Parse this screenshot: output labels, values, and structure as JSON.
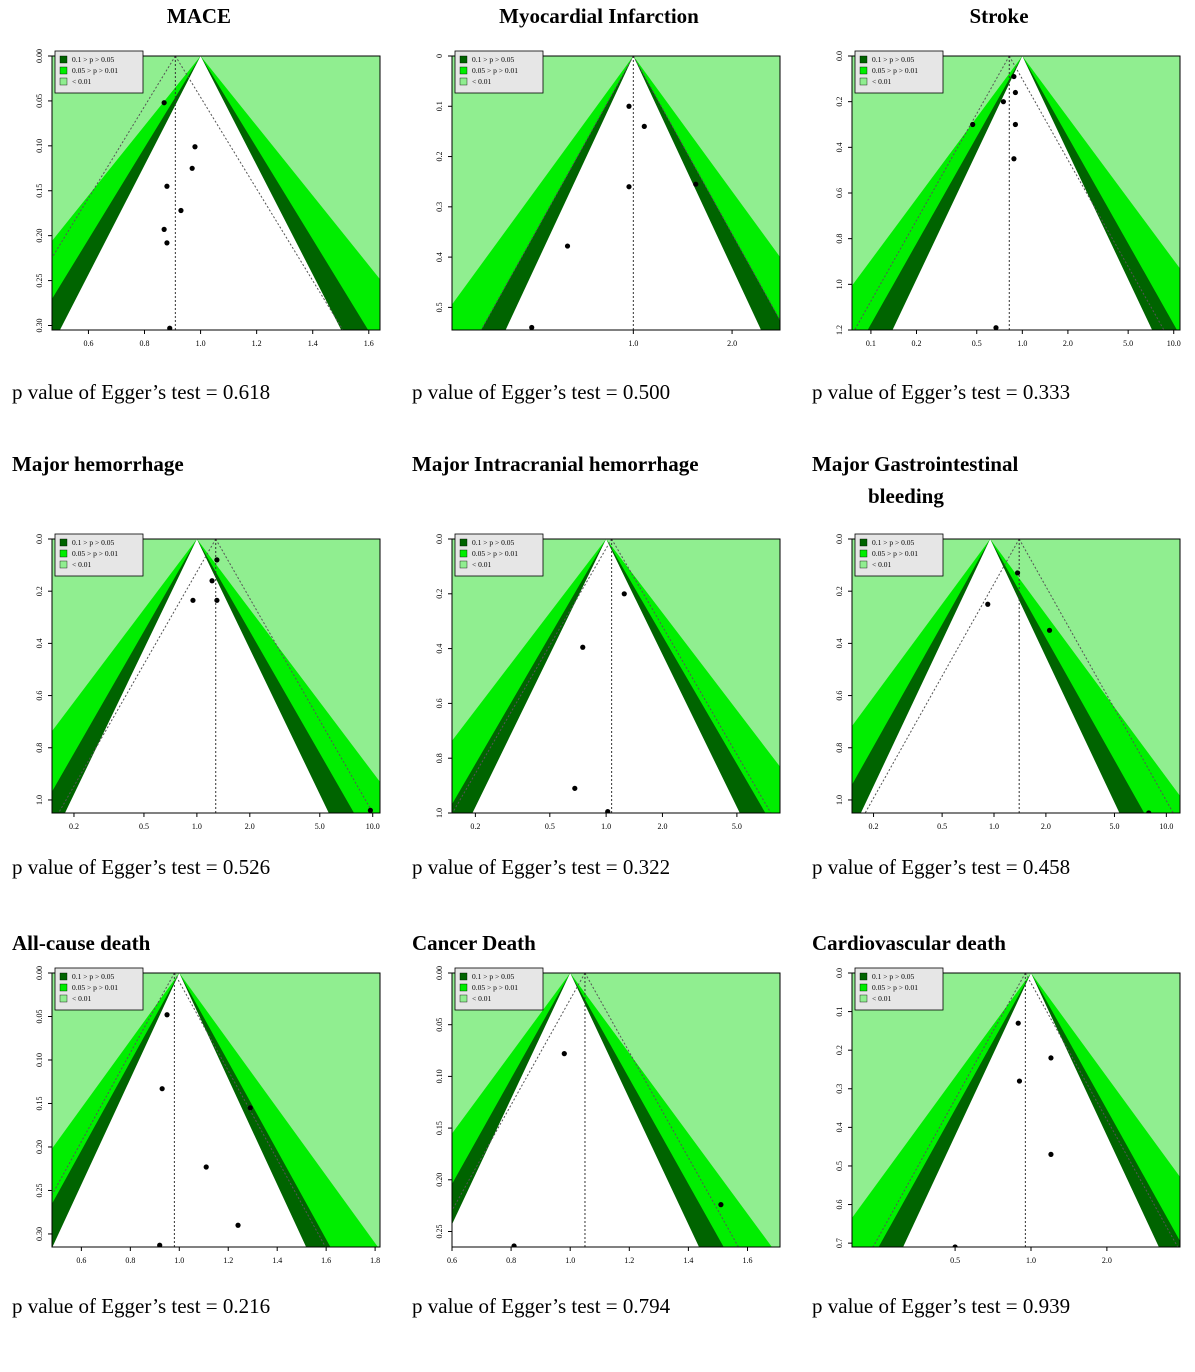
{
  "legend": {
    "entries": [
      "0.1 > p > 0.05",
      "0.05 > p > 0.01",
      "< 0.01"
    ],
    "colors": [
      "#006400",
      "#00ee00",
      "#90ee90"
    ]
  },
  "egger_prefix": "p value of Egger’s test = ",
  "chart_data": [
    {
      "type": "scatter",
      "title": "MACE",
      "title_lines": [
        "MACE"
      ],
      "egger_p": "0.618",
      "xscale": "linear",
      "xlim": [
        0.47,
        1.64
      ],
      "ylim": [
        0,
        0.305
      ],
      "xticks": [
        0.6,
        0.8,
        1.0,
        1.2,
        1.4,
        1.6
      ],
      "xtick_labels": [
        "0.6",
        "0.8",
        "1.0",
        "1.2",
        "1.4",
        "1.6"
      ],
      "yticks": [
        0,
        0.05,
        0.1,
        0.15,
        0.2,
        0.25,
        0.3
      ],
      "ytick_labels": [
        "0.00",
        "0.05",
        "0.10",
        "0.15",
        "0.20",
        "0.25",
        "0.30"
      ],
      "ref_solid": 1.0,
      "ref_dashed": 0.91,
      "points": [
        [
          0.87,
          0.052
        ],
        [
          0.98,
          0.101
        ],
        [
          0.97,
          0.125
        ],
        [
          0.88,
          0.145
        ],
        [
          0.93,
          0.172
        ],
        [
          0.87,
          0.193
        ],
        [
          0.88,
          0.208
        ],
        [
          0.89,
          0.303
        ]
      ]
    },
    {
      "type": "scatter",
      "title": "Myocardial Infarction",
      "title_lines": [
        "Myocardial Infarction"
      ],
      "egger_p": "0.500",
      "xscale": "log",
      "xlim": [
        0.28,
        2.8
      ],
      "ylim": [
        0,
        0.545
      ],
      "xticks": [
        1.0,
        2.0
      ],
      "xtick_labels": [
        "1.0",
        "2.0"
      ],
      "yticks": [
        0,
        0.1,
        0.2,
        0.3,
        0.4,
        0.5
      ],
      "ytick_labels": [
        "0",
        "0.1",
        "0.2",
        "0.3",
        "0.4",
        "0.5"
      ],
      "ref_solid": 1.0,
      "ref_dashed": 1.0,
      "points": [
        [
          0.97,
          0.1
        ],
        [
          1.08,
          0.14
        ],
        [
          0.97,
          0.26
        ],
        [
          1.55,
          0.255
        ],
        [
          0.63,
          0.378
        ],
        [
          0.49,
          0.54
        ]
      ]
    },
    {
      "type": "scatter",
      "title": "Stroke",
      "title_lines": [
        "Stroke"
      ],
      "egger_p": "0.333",
      "xscale": "log",
      "xlim": [
        0.075,
        11
      ],
      "ylim": [
        0,
        1.2
      ],
      "xticks": [
        0.1,
        0.2,
        0.5,
        1.0,
        2.0,
        5.0,
        10.0
      ],
      "xtick_labels": [
        "0.1",
        "0.2",
        "0.5",
        "1.0",
        "2.0",
        "5.0",
        "10.0"
      ],
      "yticks": [
        0,
        0.2,
        0.4,
        0.6,
        0.8,
        1.0,
        1.2
      ],
      "ytick_labels": [
        "0.0",
        "0.2",
        "0.4",
        "0.6",
        "0.8",
        "1.0",
        "1.2"
      ],
      "ref_solid": 1.0,
      "ref_dashed": 0.82,
      "points": [
        [
          0.88,
          0.09
        ],
        [
          0.9,
          0.16
        ],
        [
          0.75,
          0.2
        ],
        [
          0.47,
          0.3
        ],
        [
          0.9,
          0.3
        ],
        [
          0.88,
          0.45
        ],
        [
          0.67,
          1.19
        ]
      ]
    },
    {
      "type": "scatter",
      "title": "Major hemorrhage",
      "title_lines": [
        "Major hemorrhage"
      ],
      "egger_p": "0.526",
      "xscale": "log",
      "xlim": [
        0.15,
        11
      ],
      "ylim": [
        0,
        1.05
      ],
      "xticks": [
        0.2,
        0.5,
        1.0,
        2.0,
        5.0,
        10.0
      ],
      "xtick_labels": [
        "0.2",
        "0.5",
        "1.0",
        "2.0",
        "5.0",
        "10.0"
      ],
      "yticks": [
        0,
        0.2,
        0.4,
        0.6,
        0.8,
        1.0
      ],
      "ytick_labels": [
        "0.0",
        "0.2",
        "0.4",
        "0.6",
        "0.8",
        "1.0"
      ],
      "ref_solid": 1.0,
      "ref_dashed": 1.28,
      "points": [
        [
          1.3,
          0.08
        ],
        [
          1.22,
          0.16
        ],
        [
          0.95,
          0.235
        ],
        [
          1.3,
          0.235
        ],
        [
          9.7,
          1.04
        ]
      ]
    },
    {
      "type": "scatter",
      "title": "Major Intracranial hemorrhage",
      "title_lines": [
        "Major Intracranial hemorrhage"
      ],
      "egger_p": "0.322",
      "xscale": "log",
      "xlim": [
        0.15,
        8.5
      ],
      "ylim": [
        0,
        1.0
      ],
      "xticks": [
        0.2,
        0.5,
        1.0,
        2.0,
        5.0
      ],
      "xtick_labels": [
        "0.2",
        "0.5",
        "1.0",
        "2.0",
        "5.0"
      ],
      "yticks": [
        0,
        0.2,
        0.4,
        0.6,
        0.8,
        1.0
      ],
      "ytick_labels": [
        "0.0",
        "0.2",
        "0.4",
        "0.6",
        "0.8",
        "1.0"
      ],
      "ref_solid": 1.0,
      "ref_dashed": 1.07,
      "points": [
        [
          1.25,
          0.2
        ],
        [
          0.75,
          0.395
        ],
        [
          0.68,
          0.91
        ],
        [
          1.02,
          0.995
        ]
      ]
    },
    {
      "type": "scatter",
      "title": "Major Gastrointestinal bleeding",
      "title_lines": [
        "Major Gastrointestinal",
        "bleeding"
      ],
      "egger_p": "0.458",
      "xscale": "log",
      "xlim": [
        0.15,
        12
      ],
      "ylim": [
        0,
        1.05
      ],
      "xticks": [
        0.2,
        0.5,
        1.0,
        2.0,
        5.0,
        10.0
      ],
      "xtick_labels": [
        "0.2",
        "0.5",
        "1.0",
        "2.0",
        "5.0",
        "10.0"
      ],
      "yticks": [
        0,
        0.2,
        0.4,
        0.6,
        0.8,
        1.0
      ],
      "ytick_labels": [
        "0.0",
        "0.2",
        "0.4",
        "0.6",
        "0.8",
        "1.0"
      ],
      "ref_solid": 0.95,
      "ref_dashed": 1.4,
      "points": [
        [
          1.37,
          0.13
        ],
        [
          0.92,
          0.25
        ],
        [
          2.1,
          0.35
        ],
        [
          7.9,
          1.05
        ]
      ]
    },
    {
      "type": "scatter",
      "title": "All-cause death",
      "title_lines": [
        "All-cause death"
      ],
      "egger_p": "0.216",
      "xscale": "linear",
      "xlim": [
        0.48,
        1.82
      ],
      "ylim": [
        0,
        0.315
      ],
      "xticks": [
        0.6,
        0.8,
        1.0,
        1.2,
        1.4,
        1.6,
        1.8
      ],
      "xtick_labels": [
        "0.6",
        "0.8",
        "1.0",
        "1.2",
        "1.4",
        "1.6",
        "1.8"
      ],
      "yticks": [
        0,
        0.05,
        0.1,
        0.15,
        0.2,
        0.25,
        0.3
      ],
      "ytick_labels": [
        "0.00",
        "0.05",
        "0.10",
        "0.15",
        "0.20",
        "0.25",
        "0.30"
      ],
      "ref_solid": 1.0,
      "ref_dashed": 0.98,
      "points": [
        [
          0.95,
          0.048
        ],
        [
          0.93,
          0.133
        ],
        [
          1.29,
          0.155
        ],
        [
          1.11,
          0.223
        ],
        [
          1.24,
          0.29
        ],
        [
          0.92,
          0.313
        ]
      ]
    },
    {
      "type": "scatter",
      "title": "Cancer Death",
      "title_lines": [
        "Cancer Death"
      ],
      "egger_p": "0.794",
      "xscale": "linear",
      "xlim": [
        0.6,
        1.71
      ],
      "ylim": [
        0,
        0.265
      ],
      "xticks": [
        0.6,
        0.8,
        1.0,
        1.2,
        1.4,
        1.6
      ],
      "xtick_labels": [
        "0.6",
        "0.8",
        "1.0",
        "1.2",
        "1.4",
        "1.6"
      ],
      "yticks": [
        0,
        0.05,
        0.1,
        0.15,
        0.2,
        0.25
      ],
      "ytick_labels": [
        "0.00",
        "0.05",
        "0.10",
        "0.15",
        "0.20",
        "0.25"
      ],
      "ref_solid": 1.0,
      "ref_dashed": 1.05,
      "points": [
        [
          0.98,
          0.078
        ],
        [
          1.51,
          0.224
        ],
        [
          0.81,
          0.264
        ]
      ]
    },
    {
      "type": "scatter",
      "title": "Cardiovascular death",
      "title_lines": [
        "Cardiovascular death"
      ],
      "egger_p": "0.939",
      "xscale": "log",
      "xlim": [
        0.195,
        3.9
      ],
      "ylim": [
        0,
        0.71
      ],
      "xticks": [
        0.5,
        1.0,
        2.0
      ],
      "xtick_labels": [
        "0.5",
        "1.0",
        "2.0"
      ],
      "yticks": [
        0,
        0.1,
        0.2,
        0.3,
        0.4,
        0.5,
        0.6,
        0.7
      ],
      "ytick_labels": [
        "0.0",
        "0.1",
        "0.2",
        "0.3",
        "0.4",
        "0.5",
        "0.6",
        "0.7"
      ],
      "ref_solid": 1.0,
      "ref_dashed": 0.95,
      "points": [
        [
          0.89,
          0.13
        ],
        [
          1.2,
          0.22
        ],
        [
          0.9,
          0.28
        ],
        [
          1.2,
          0.47
        ],
        [
          0.5,
          0.71
        ]
      ]
    }
  ]
}
